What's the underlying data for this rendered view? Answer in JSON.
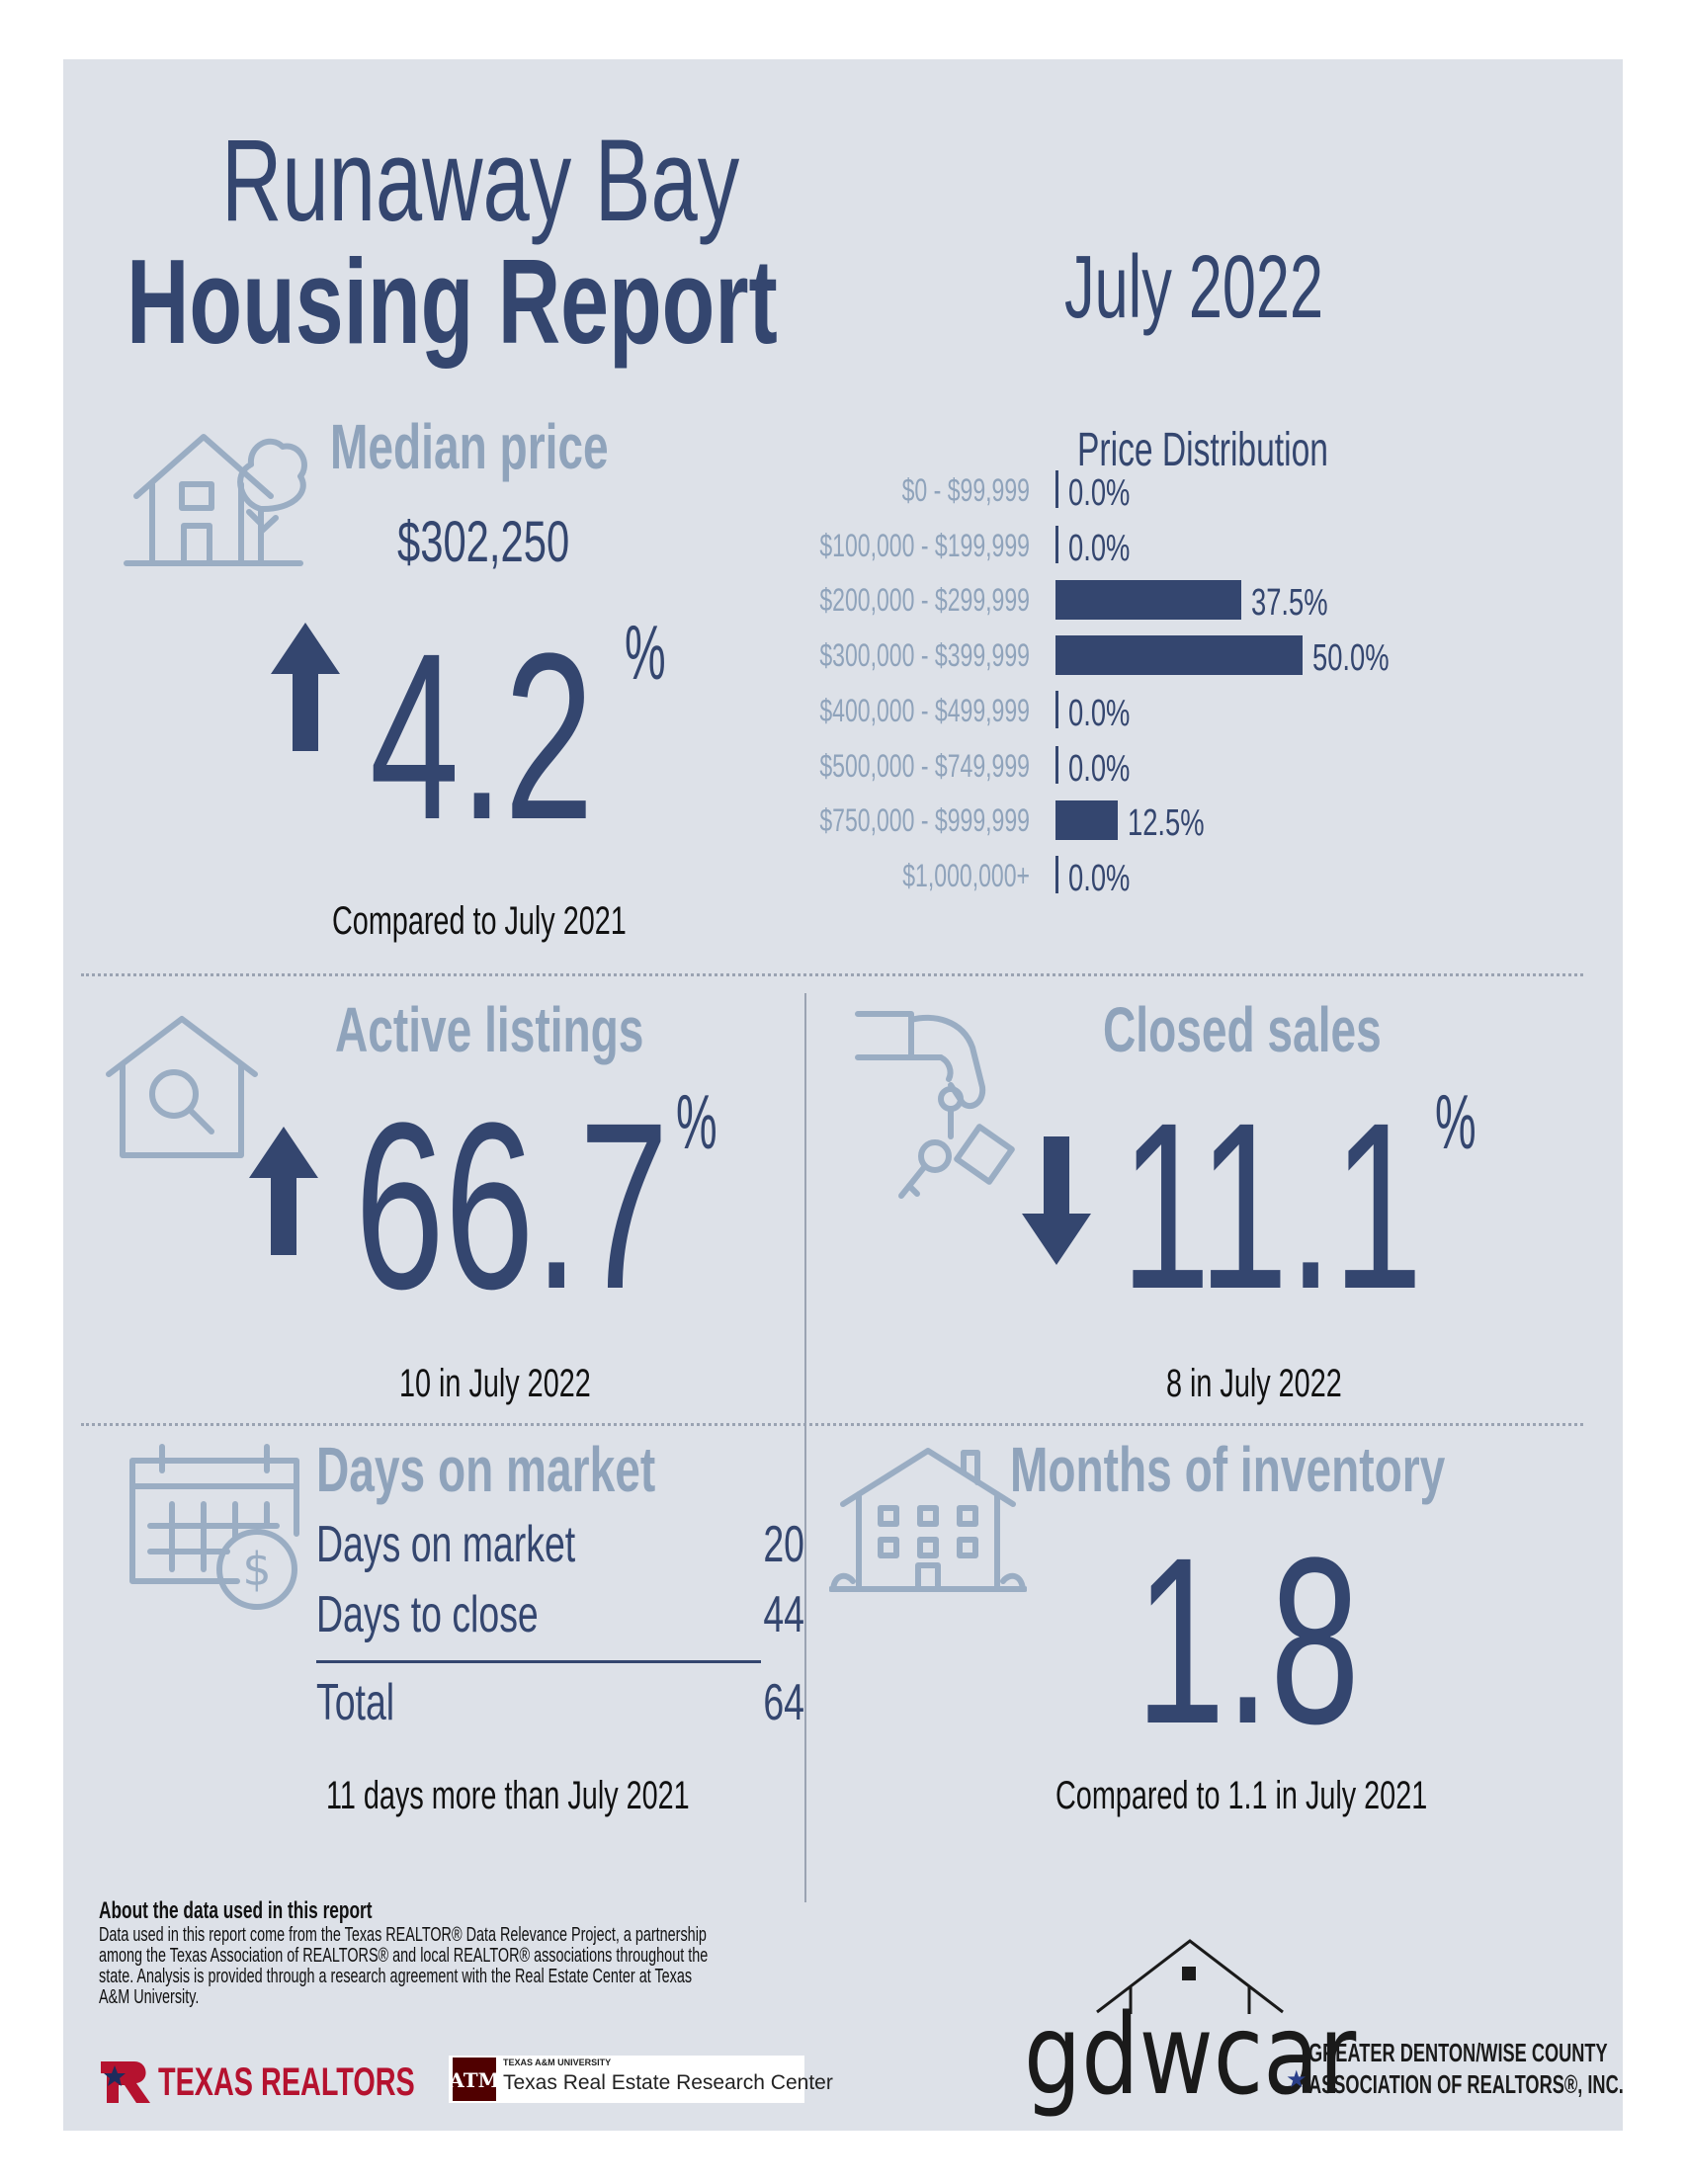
{
  "header": {
    "title_line1": "Runaway Bay",
    "title_line2": "Housing Report",
    "month": "July 2022"
  },
  "median_price": {
    "label": "Median price",
    "value": "$302,250",
    "change": "4.2",
    "percent_symbol": "%",
    "direction": "up",
    "comparison": "Compared to July 2021",
    "icon": "house-tree-icon"
  },
  "price_distribution": {
    "title": "Price Distribution",
    "rows": [
      {
        "range": "$0 - $99,999",
        "percent": 0.0,
        "label": "0.0%"
      },
      {
        "range": "$100,000 - $199,999",
        "percent": 0.0,
        "label": "0.0%"
      },
      {
        "range": "$200,000 - $299,999",
        "percent": 37.5,
        "label": "37.5%"
      },
      {
        "range": "$300,000 - $399,999",
        "percent": 50.0,
        "label": "50.0%"
      },
      {
        "range": "$400,000 - $499,999",
        "percent": 0.0,
        "label": "0.0%"
      },
      {
        "range": "$500,000 - $749,999",
        "percent": 0.0,
        "label": "0.0%"
      },
      {
        "range": "$750,000 - $999,999",
        "percent": 12.5,
        "label": "12.5%"
      },
      {
        "range": "$1,000,000+",
        "percent": 0.0,
        "label": "0.0%"
      }
    ]
  },
  "active_listings": {
    "label": "Active listings",
    "change": "66.7",
    "percent_symbol": "%",
    "direction": "up",
    "comparison": "10 in July 2022",
    "icon": "house-search-icon"
  },
  "closed_sales": {
    "label": "Closed sales",
    "change": "11.1",
    "percent_symbol": "%",
    "direction": "down",
    "comparison": "8 in July 2022",
    "icon": "hand-keys-icon"
  },
  "days_on_market": {
    "title": "Days on market",
    "rows": [
      {
        "label": "Days on market",
        "value": "20"
      },
      {
        "label": "Days to close",
        "value": "44"
      }
    ],
    "total_label": "Total",
    "total_value": "64",
    "comparison": "11 days more than July 2021",
    "icon": "calendar-dollar-icon"
  },
  "months_inventory": {
    "title": "Months of inventory",
    "value": "1.8",
    "comparison": "Compared to 1.1 in July 2021",
    "icon": "apartment-building-icon"
  },
  "about": {
    "heading": "About the data used in this report",
    "body": "Data used in this report come from the Texas REALTOR® Data Relevance Project, a partnership among the Texas Association of REALTORS® and local REALTOR® associations throughout the state. Analysis is provided through a research agreement with the Real Estate Center at Texas A&M University."
  },
  "logos": {
    "texas_realtors": "TEXAS REALTORS",
    "tamu_small": "TEXAS A&M UNIVERSITY",
    "tamu_text": "Texas Real Estate Research Center",
    "gdwcar": "gdwcar",
    "gdwcar_line1": "GREATER DENTON/WISE COUNTY",
    "gdwcar_line2": "ASSOCIATION OF REALTORS®, INC."
  },
  "colors": {
    "background": "#dde1e8",
    "navy": "#34466f",
    "grey": "#8fa3bb",
    "icon": "#9aadc3",
    "texas_red": "#b5122f"
  }
}
